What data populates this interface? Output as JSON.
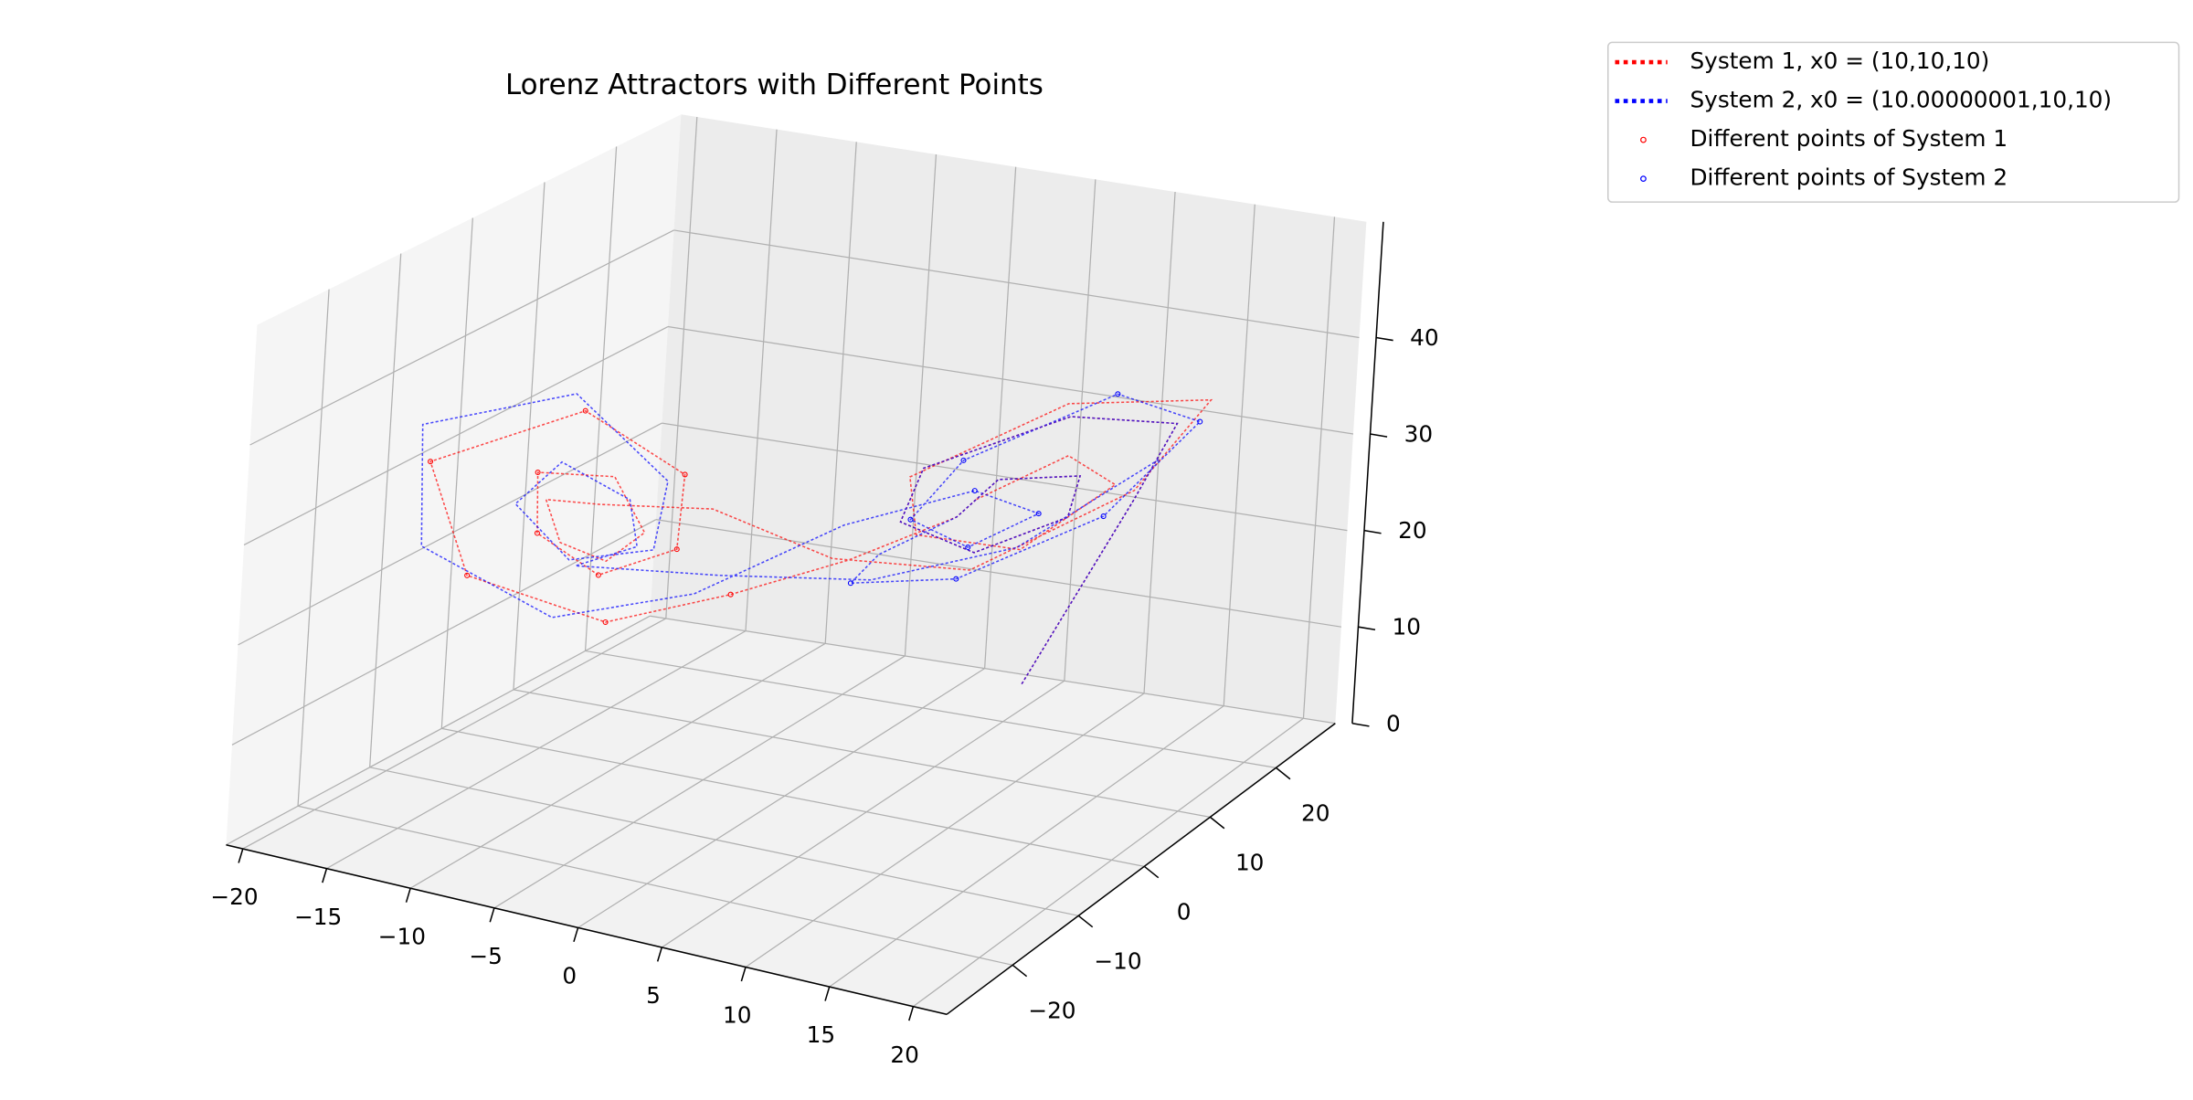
{
  "chart_data": {
    "type": "line3d",
    "title": "Lorenz Attractors with Different Points",
    "xlim": [
      -21,
      22
    ],
    "ylim": [
      -30,
      29
    ],
    "zlim": [
      0,
      52
    ],
    "xticks": [
      {
        "value": -20,
        "label": "−20"
      },
      {
        "value": -15,
        "label": "−15"
      },
      {
        "value": -10,
        "label": "−10"
      },
      {
        "value": -5,
        "label": "−5"
      },
      0,
      5,
      10,
      15,
      20
    ],
    "yticks": [
      {
        "value": -20,
        "label": "−20"
      },
      {
        "value": -10,
        "label": "−10"
      },
      0,
      10,
      20
    ],
    "zticks": [
      0,
      10,
      20,
      30,
      40
    ],
    "grid": true,
    "legend": "upper right",
    "series": [
      {
        "name": "System 1, x0 = (10,10,10)",
        "color": "red",
        "style": "dotted",
        "x": [
          10,
          13,
          15,
          12,
          6,
          4,
          7,
          11,
          12,
          9,
          7,
          3,
          -2,
          -7,
          -13,
          -16,
          -11,
          -6,
          -5,
          -8,
          -11,
          -12,
          -9,
          -7,
          -8,
          -10,
          -11,
          -9,
          -5,
          0,
          6,
          13,
          17,
          13,
          6,
          5,
          9,
          13,
          12,
          8
        ],
        "y": [
          10,
          18,
          19,
          10,
          3,
          5,
          9,
          13,
          12,
          7,
          6,
          0,
          -5,
          -11,
          -17,
          -16,
          -6,
          -3,
          -6,
          -10,
          -12,
          -10,
          -6,
          -6,
          -9,
          -11,
          -11,
          -8,
          -1,
          5,
          11,
          18,
          19,
          7,
          1,
          5,
          11,
          15,
          10,
          6
        ],
        "z": [
          10,
          26,
          34,
          38,
          34,
          27,
          23,
          26,
          31,
          32,
          28,
          25,
          22,
          20,
          25,
          35,
          38,
          32,
          26,
          24,
          28,
          33,
          32,
          27,
          25,
          27,
          31,
          30,
          28,
          22,
          20,
          27,
          37,
          41,
          34,
          26,
          23,
          29,
          34,
          30
        ]
      },
      {
        "name": "System 2, x0 = (10.00000001,10,10)",
        "color": "blue",
        "style": "dotted",
        "x": [
          10,
          13,
          15,
          12,
          6,
          4,
          7,
          11,
          12,
          9,
          7,
          4,
          2,
          6,
          12,
          16,
          14,
          8,
          5,
          7,
          10,
          8,
          3,
          -3,
          -9,
          -15,
          -17,
          -12,
          -7,
          -6,
          -9,
          -12,
          -11,
          -8,
          -7,
          -9,
          -4,
          2,
          8,
          14
        ],
        "y": [
          10,
          18,
          19,
          10,
          3,
          5,
          9,
          13,
          12,
          7,
          6,
          2,
          3,
          9,
          16,
          20,
          12,
          4,
          4,
          8,
          11,
          6,
          -1,
          -8,
          -14,
          -19,
          -15,
          -5,
          -3,
          -7,
          -12,
          -13,
          -9,
          -6,
          -7,
          -11,
          -2,
          6,
          13,
          19
        ],
        "z": [
          10,
          26,
          34,
          38,
          34,
          27,
          23,
          26,
          31,
          32,
          28,
          25,
          21,
          20,
          25,
          34,
          40,
          35,
          28,
          24,
          27,
          31,
          29,
          23,
          21,
          28,
          38,
          39,
          31,
          26,
          26,
          31,
          34,
          30,
          26,
          25,
          22,
          20,
          22,
          30
        ]
      },
      {
        "name": "Different points of System 1",
        "color": "red",
        "style": "marker",
        "x": [
          -2,
          -7,
          -13,
          -16,
          -11,
          -6,
          -5,
          -8,
          -11,
          -12
        ],
        "y": [
          -5,
          -11,
          -17,
          -16,
          -6,
          -3,
          -6,
          -10,
          -12,
          -10
        ],
        "z": [
          22,
          20,
          25,
          35,
          38,
          32,
          26,
          24,
          28,
          33
        ]
      },
      {
        "name": "Different points of System 2",
        "color": "blue",
        "style": "marker",
        "x": [
          2,
          6,
          12,
          16,
          14,
          8,
          5,
          7,
          10,
          8
        ],
        "y": [
          3,
          9,
          16,
          20,
          12,
          4,
          4,
          8,
          11,
          6
        ],
        "z": [
          21,
          20,
          25,
          34,
          40,
          35,
          28,
          24,
          27,
          31
        ]
      }
    ]
  }
}
